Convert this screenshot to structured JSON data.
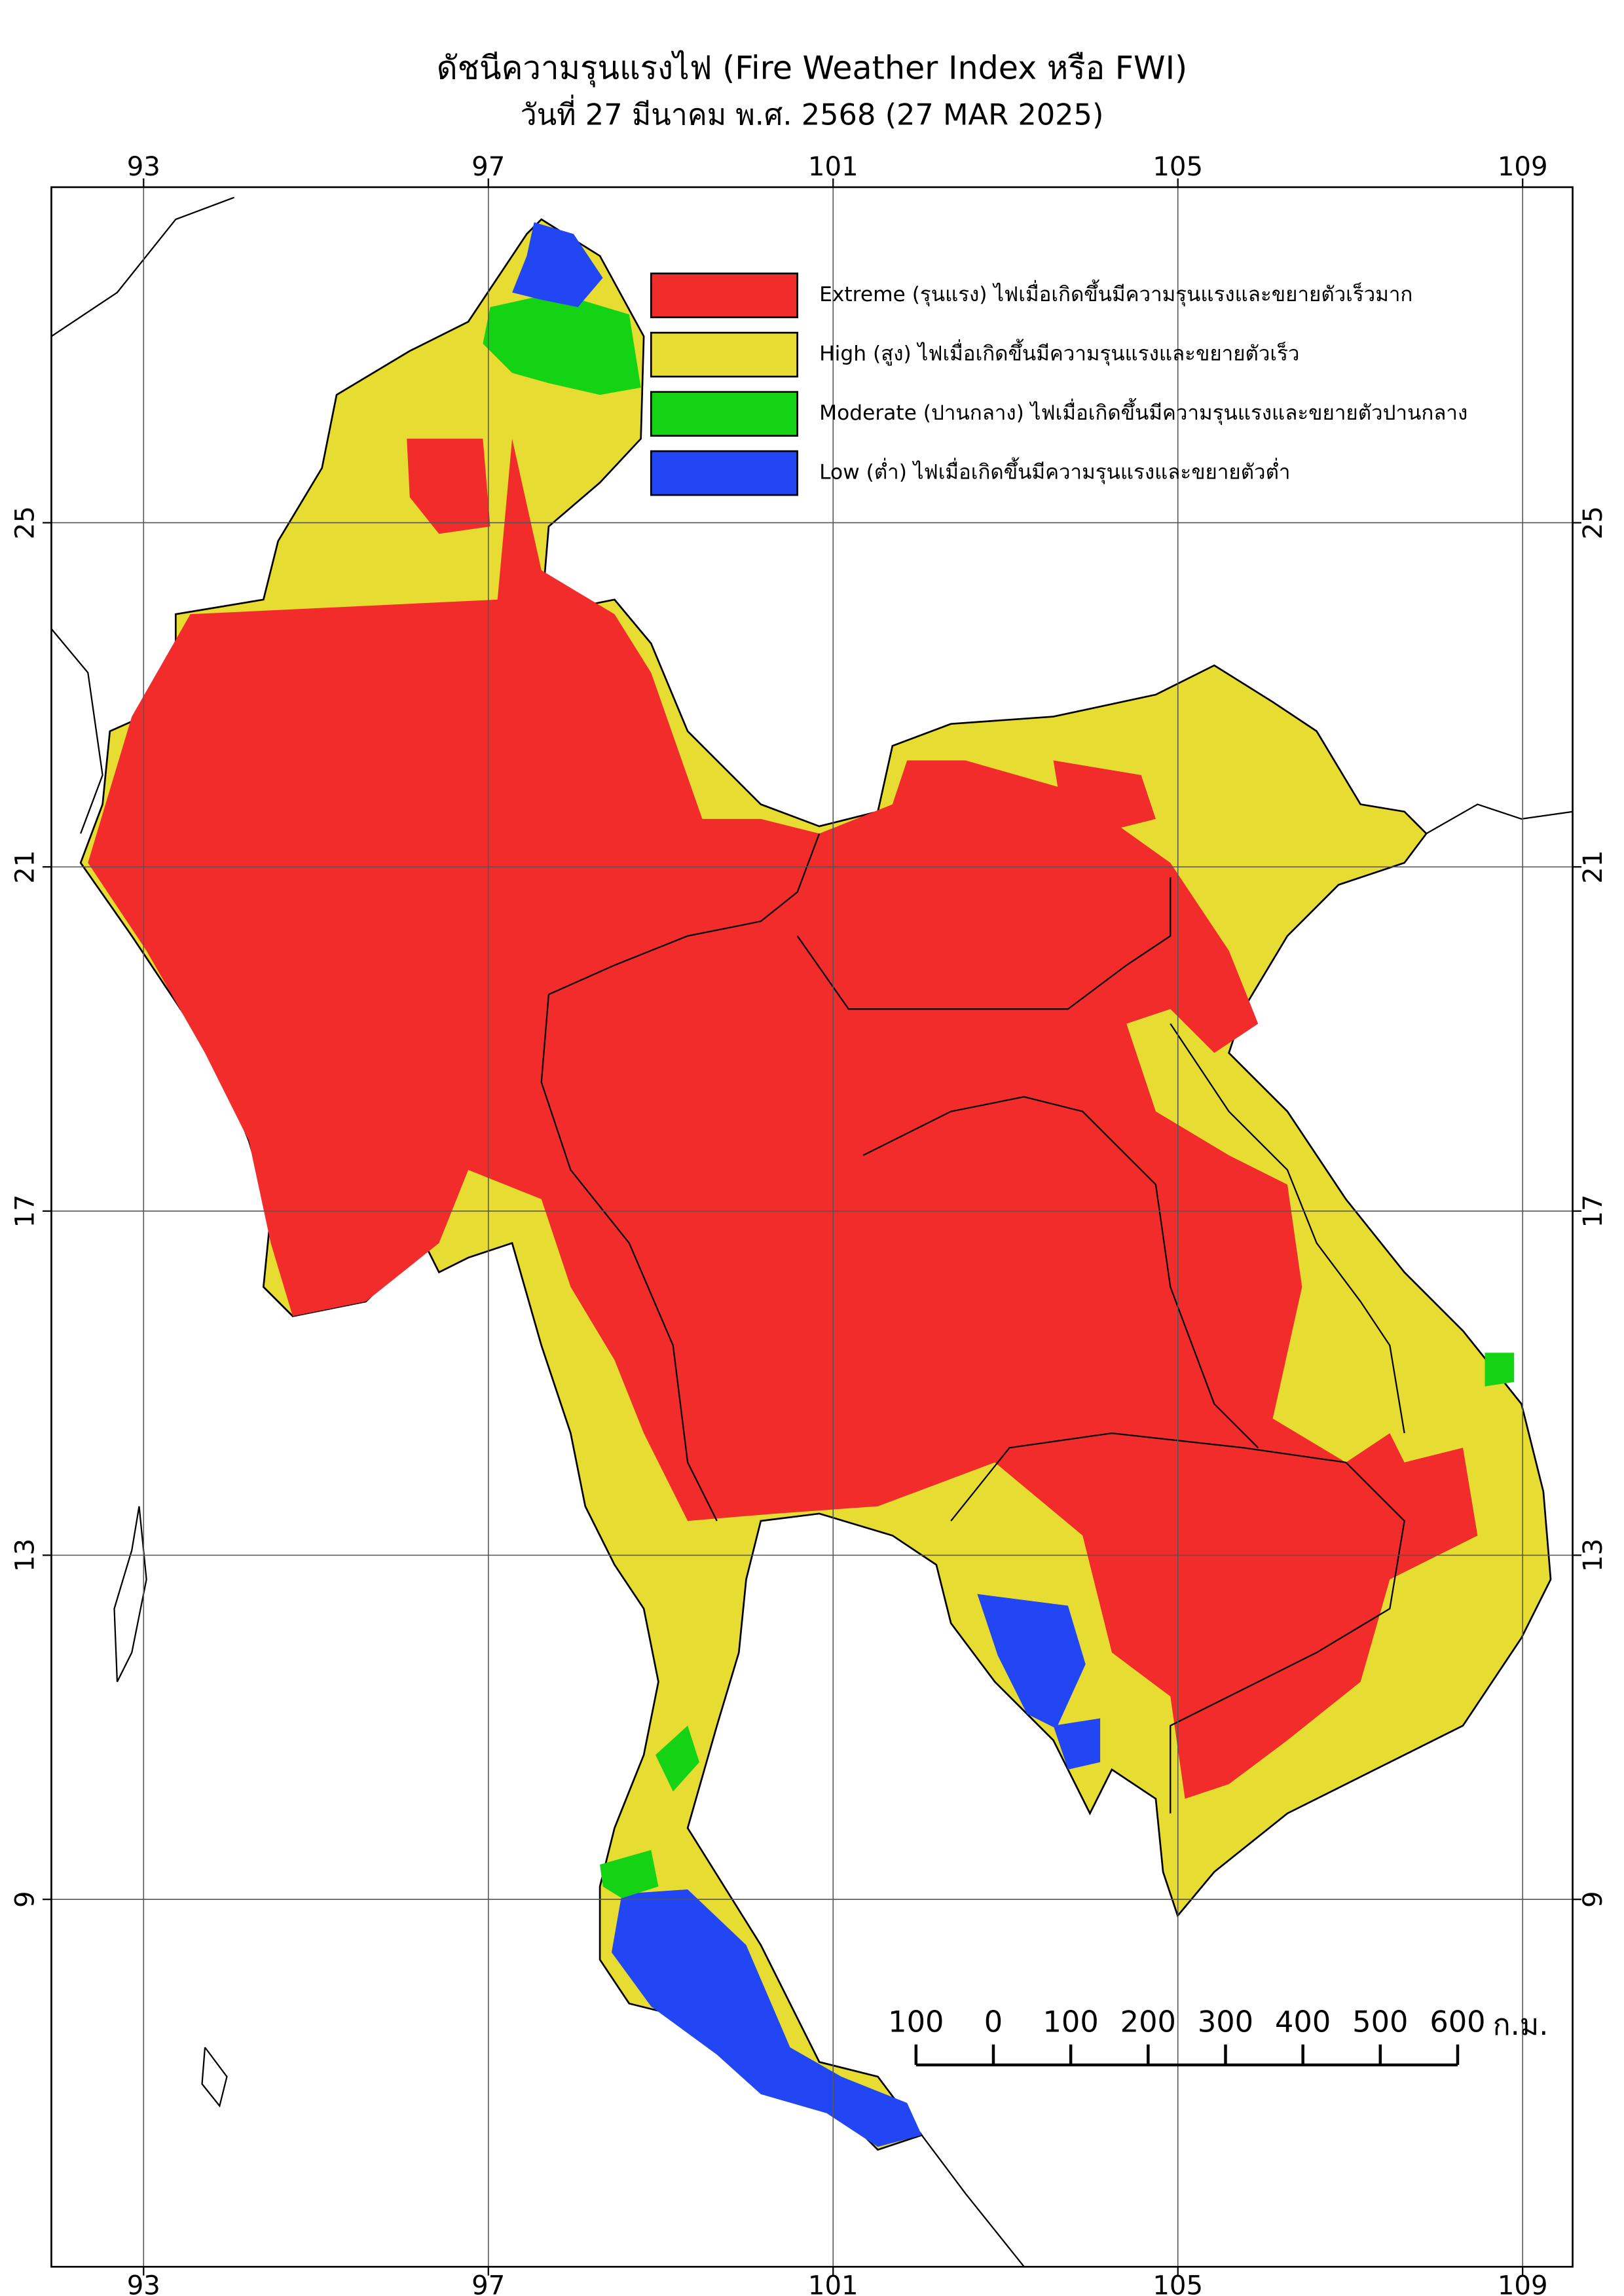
{
  "map_data": {
    "title": "ดัชนีความรุนแรงไฟ (Fire Weather Index หรือ FWI)",
    "subtitle": "วันที่ 27 มีนาคม พ.ศ. 2568 (27 MAR 2025)",
    "lon_lim": [
      91.93,
      109.58
    ],
    "lat_lim": [
      4.73,
      28.9
    ],
    "lon_ticks": [
      93,
      97,
      101,
      105,
      109
    ],
    "lat_ticks": [
      25,
      21,
      17,
      13,
      9
    ],
    "grid": true,
    "legend": [
      {
        "color": "#f22b2b",
        "label": "Extreme (รุนแรง) ไฟเมื่อเกิดขึ้นมีความรุนแรงและขยายตัวเร็วมาก"
      },
      {
        "color": "#e6dc32",
        "label": "High (สูง) ไฟเมื่อเกิดขึ้นมีความรุนแรงและขยายตัวเร็ว"
      },
      {
        "color": "#14d214",
        "label": "Moderate (ปานกลาง) ไฟเมื่อเกิดขึ้นมีความรุนแรงและขยายตัวปานกลาง"
      },
      {
        "color": "#2346f5",
        "label": "Low (ต่ำ) ไฟเมื่อเกิดขึ้นมีความรุนแรงและขยายตัวต่ำ"
      }
    ],
    "scale_bar": {
      "ticks": [
        {
          "value": -100,
          "label": "100"
        },
        0,
        100,
        200,
        300,
        400,
        500,
        600
      ],
      "unit": "ก.ม."
    }
  }
}
